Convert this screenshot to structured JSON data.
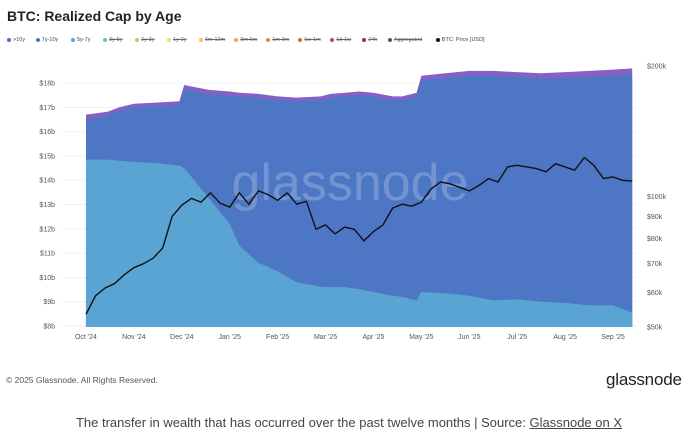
{
  "chart_data": {
    "type": "area",
    "title": "BTC: Realized Cap by Age",
    "watermark": "glassnode",
    "legend": [
      {
        "name": ">10y",
        "color": "#7e57c2",
        "active": true
      },
      {
        "name": "7y-10y",
        "color": "#4a78c4",
        "active": true
      },
      {
        "name": "5y-7y",
        "color": "#5aa6d4",
        "active": true
      },
      {
        "name": "3y-5y",
        "color": "#66c6b4",
        "active": false
      },
      {
        "name": "2y-3y",
        "color": "#a6d46a",
        "active": false
      },
      {
        "name": "1y-2y",
        "color": "#e6e65a",
        "active": false
      },
      {
        "name": "6m-12m",
        "color": "#f2c84a",
        "active": false
      },
      {
        "name": "3m-6m",
        "color": "#f2a84a",
        "active": false
      },
      {
        "name": "1m-3m",
        "color": "#f0884a",
        "active": false
      },
      {
        "name": "1w-1m",
        "color": "#e8604a",
        "active": false
      },
      {
        "name": "1d-1w",
        "color": "#d8404a",
        "active": false
      },
      {
        "name": "24h",
        "color": "#b02040",
        "active": false
      },
      {
        "name": "Aggregated",
        "color": "#555555",
        "active": false
      },
      {
        "name": "BTC: Price [USD]",
        "color": "#111111",
        "active": true
      }
    ],
    "x_ticks": [
      "Oct '24",
      "Nov '24",
      "Dec '24",
      "Jan '25",
      "Feb '25",
      "Mar '25",
      "Apr '25",
      "May '25",
      "Jun '25",
      "Jul '25",
      "Aug '25",
      "Sep '25"
    ],
    "y_left_ticks": [
      "$8b",
      "$9b",
      "$10b",
      "$11b",
      "$12b",
      "$13b",
      "$14b",
      "$15b",
      "$16b",
      "$17b",
      "$18b"
    ],
    "y_right_ticks": [
      "$50k",
      "$60k",
      "$70k",
      "$80k",
      "$90k",
      "$100k",
      "$200k"
    ],
    "ylim_left": [
      7.96,
      18.7
    ],
    "ylim_right": [
      50000,
      200000
    ],
    "y_right_scale": "log",
    "x": [
      0,
      0.45,
      0.7,
      1,
      1.5,
      1.95,
      2.05,
      2.55,
      3,
      3.2,
      3.6,
      4,
      4.4,
      4.9,
      5.1,
      5.4,
      5.7,
      6,
      6.4,
      6.6,
      6.9,
      7,
      7.5,
      8,
      8.5,
      9,
      9.5,
      10,
      10.5,
      11,
      11.4
    ],
    "series": [
      {
        "name": "5y-7y",
        "values": [
          14.85,
          14.85,
          14.8,
          14.75,
          14.7,
          14.6,
          14.5,
          13.3,
          12.2,
          11.3,
          10.6,
          10.25,
          9.8,
          9.62,
          9.6,
          9.6,
          9.52,
          9.4,
          9.25,
          9.2,
          9.05,
          9.4,
          9.35,
          9.25,
          9.05,
          9.1,
          9.0,
          8.95,
          8.85,
          8.85,
          8.55
        ]
      },
      {
        "name": "7y-10y",
        "values": [
          16.5,
          16.65,
          16.85,
          17.0,
          17.05,
          17.1,
          17.75,
          17.55,
          17.45,
          17.45,
          17.4,
          17.3,
          17.25,
          17.3,
          17.4,
          17.45,
          17.5,
          17.45,
          17.3,
          17.3,
          17.45,
          18.1,
          18.2,
          18.3,
          18.3,
          18.25,
          18.2,
          18.2,
          18.25,
          18.3,
          18.35
        ]
      },
      {
        "name": ">10y",
        "values": [
          16.7,
          16.82,
          17.0,
          17.15,
          17.2,
          17.25,
          17.92,
          17.72,
          17.65,
          17.6,
          17.55,
          17.45,
          17.4,
          17.45,
          17.55,
          17.6,
          17.65,
          17.6,
          17.45,
          17.45,
          17.6,
          18.3,
          18.4,
          18.5,
          18.5,
          18.45,
          18.4,
          18.45,
          18.5,
          18.55,
          18.6
        ]
      }
    ],
    "price": {
      "name": "BTC: Price [USD]",
      "x": [
        0,
        0.2,
        0.4,
        0.6,
        0.8,
        1.0,
        1.2,
        1.4,
        1.6,
        1.8,
        2.0,
        2.2,
        2.4,
        2.6,
        2.8,
        3.0,
        3.2,
        3.4,
        3.6,
        3.8,
        4.0,
        4.2,
        4.4,
        4.6,
        4.8,
        5.0,
        5.2,
        5.4,
        5.6,
        5.8,
        6.0,
        6.2,
        6.4,
        6.6,
        6.8,
        7.0,
        7.2,
        7.4,
        7.6,
        7.8,
        8.0,
        8.2,
        8.4,
        8.6,
        8.8,
        9.0,
        9.2,
        9.4,
        9.6,
        9.8,
        10.0,
        10.2,
        10.4,
        10.6,
        10.8,
        11.0,
        11.2,
        11.4
      ],
      "values": [
        53500,
        59000,
        61500,
        63000,
        66000,
        68500,
        70000,
        72000,
        76000,
        90000,
        95500,
        99000,
        97000,
        102000,
        96500,
        94500,
        102000,
        96000,
        103000,
        101000,
        98000,
        102000,
        96000,
        97500,
        84000,
        86000,
        82000,
        85000,
        84000,
        79000,
        83000,
        86000,
        94000,
        96000,
        95000,
        97000,
        104000,
        108000,
        107000,
        105000,
        103000,
        106000,
        110000,
        108000,
        117000,
        118000,
        117000,
        116000,
        114000,
        119000,
        117000,
        115000,
        123000,
        118000,
        110000,
        111000,
        109000,
        108500
      ]
    }
  },
  "footer": {
    "copyright": "© 2025 Glassnode. All Rights Reserved.",
    "brand": "glassnode"
  },
  "caption": {
    "text": "The transfer in wealth that has occurred over the past twelve months | Source: ",
    "link": "Glassnode on X"
  }
}
